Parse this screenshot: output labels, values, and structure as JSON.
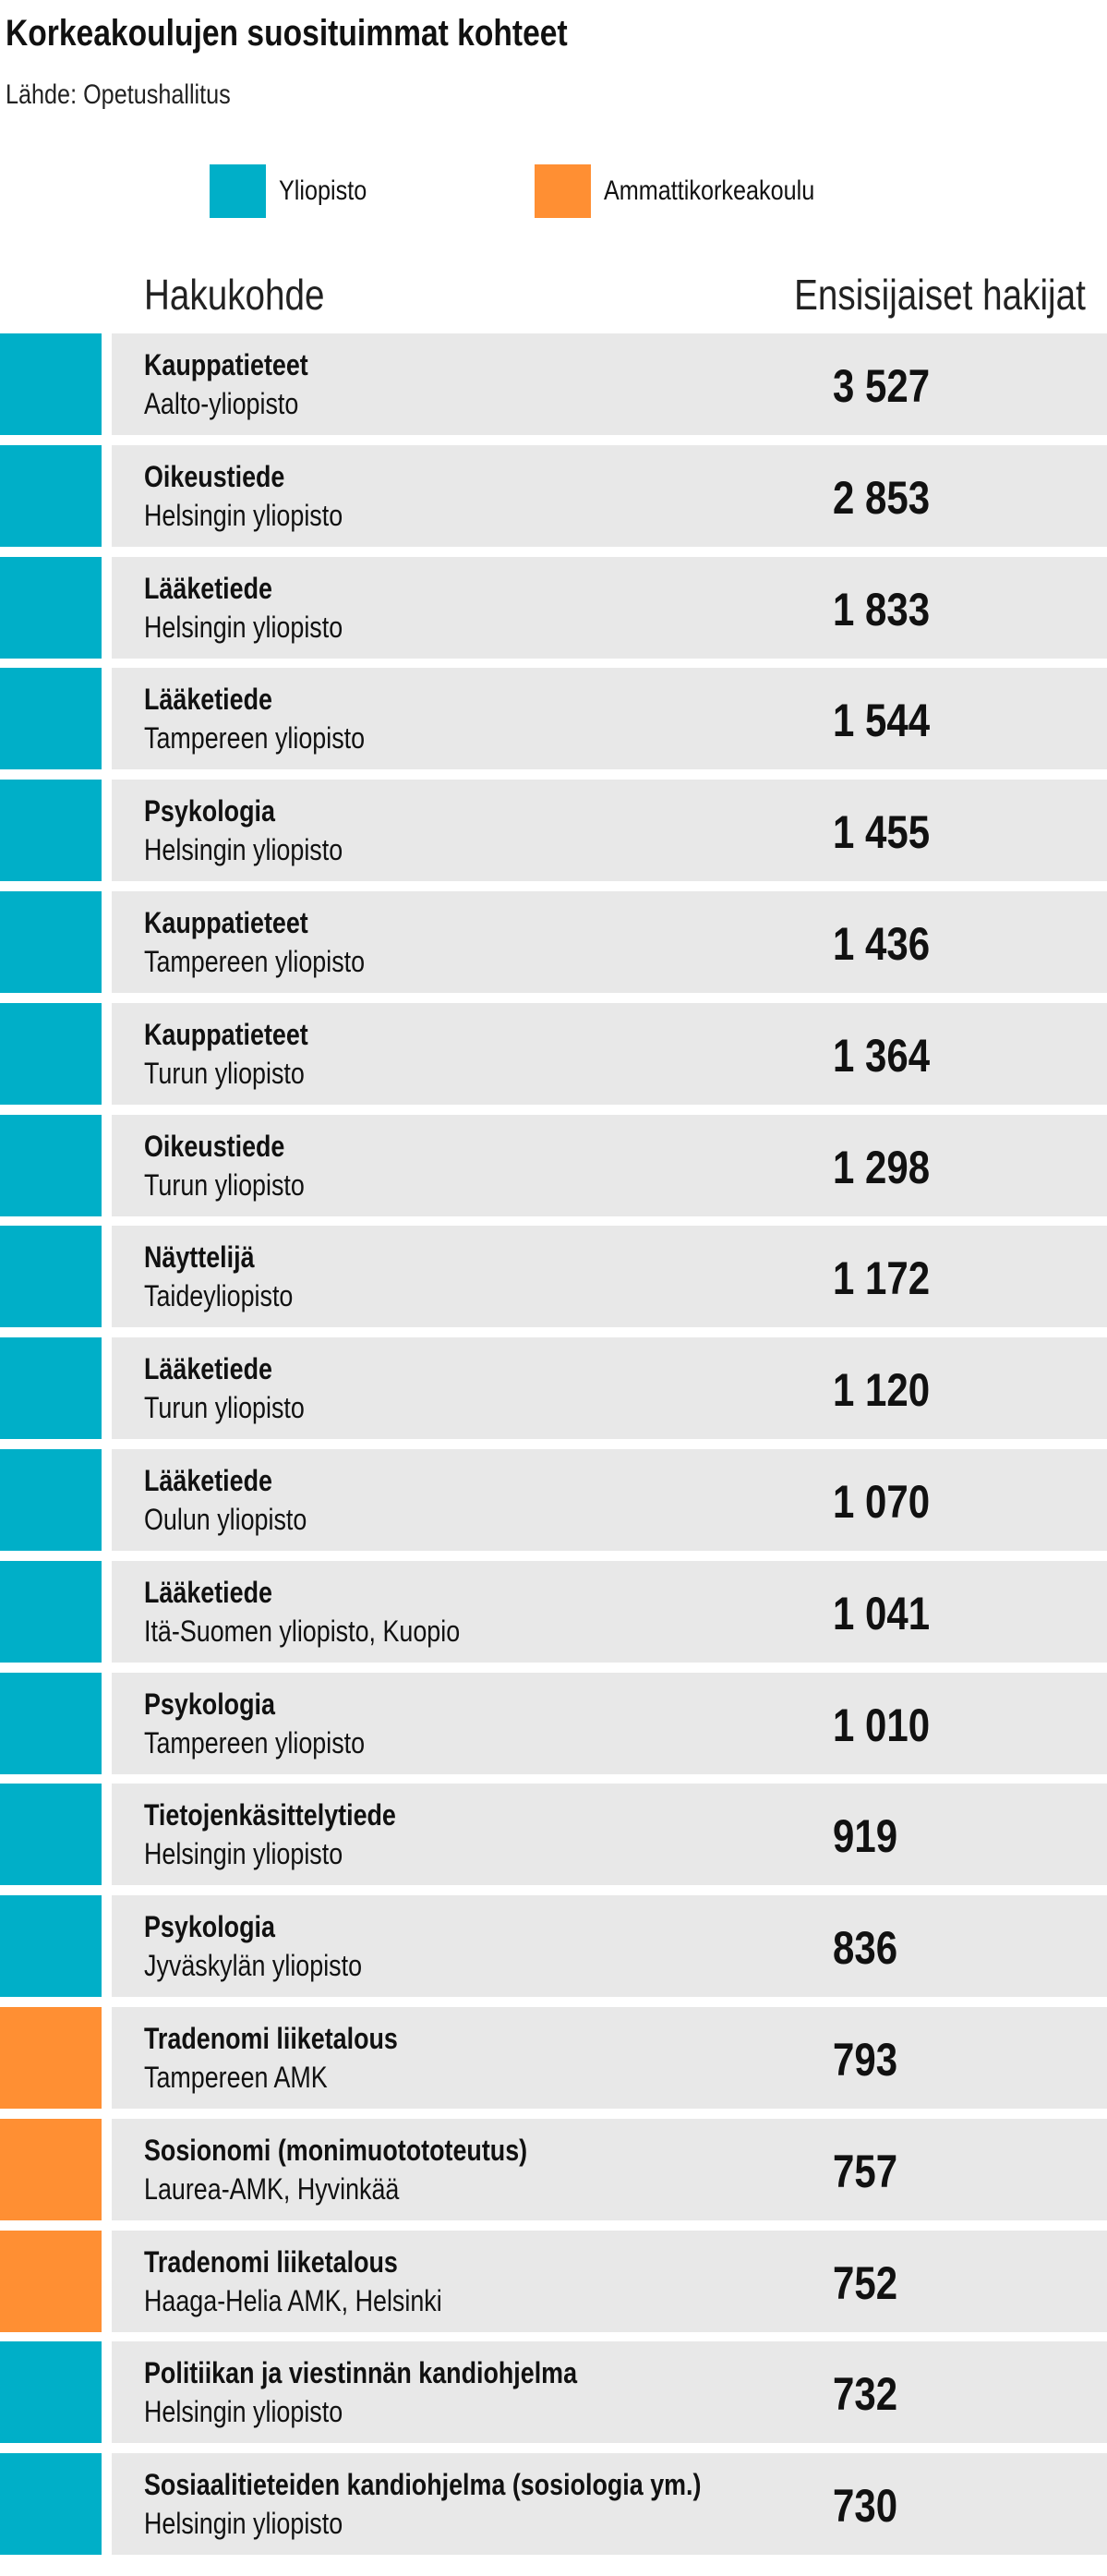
{
  "header": {
    "title": "Korkeakoulujen suosituimmat kohteet",
    "source": "Lähde: Opetushallitus"
  },
  "legend": [
    {
      "label": "Yliopisto",
      "color": "#00afc8"
    },
    {
      "label": "Ammattikorkeakoulu",
      "color": "#ff8f33"
    }
  ],
  "table": {
    "columns": [
      "Hakukohde",
      "Ensisijaiset hakijat"
    ],
    "rows": [
      {
        "name": "Kauppatieteet",
        "school": "Aalto-yliopisto",
        "value": "3 527",
        "color": "#00afc8"
      },
      {
        "name": "Oikeustiede",
        "school": "Helsingin yliopisto",
        "value": "2 853",
        "color": "#00afc8"
      },
      {
        "name": "Lääketiede",
        "school": "Helsingin yliopisto",
        "value": "1 833",
        "color": "#00afc8"
      },
      {
        "name": "Lääketiede",
        "school": "Tampereen yliopisto",
        "value": "1 544",
        "color": "#00afc8"
      },
      {
        "name": "Psykologia",
        "school": "Helsingin yliopisto",
        "value": "1 455",
        "color": "#00afc8"
      },
      {
        "name": "Kauppatieteet",
        "school": "Tampereen yliopisto",
        "value": "1 436",
        "color": "#00afc8"
      },
      {
        "name": "Kauppatieteet",
        "school": "Turun yliopisto",
        "value": "1 364",
        "color": "#00afc8"
      },
      {
        "name": "Oikeustiede",
        "school": "Turun yliopisto",
        "value": "1 298",
        "color": "#00afc8"
      },
      {
        "name": "Näyttelijä",
        "school": "Taideyliopisto",
        "value": "1 172",
        "color": "#00afc8"
      },
      {
        "name": "Lääketiede",
        "school": "Turun yliopisto",
        "value": "1 120",
        "color": "#00afc8"
      },
      {
        "name": "Lääketiede",
        "school": "Oulun yliopisto",
        "value": "1 070",
        "color": "#00afc8"
      },
      {
        "name": "Lääketiede",
        "school": "Itä-Suomen yliopisto, Kuopio",
        "value": "1 041",
        "color": "#00afc8"
      },
      {
        "name": "Psykologia",
        "school": "Tampereen yliopisto",
        "value": "1 010",
        "color": "#00afc8"
      },
      {
        "name": "Tietojenkäsittelytiede",
        "school": "Helsingin yliopisto",
        "value": "919",
        "color": "#00afc8"
      },
      {
        "name": "Psykologia",
        "school": "Jyväskylän yliopisto",
        "value": "836",
        "color": "#00afc8"
      },
      {
        "name": "Tradenomi liiketalous",
        "school": "Tampereen AMK",
        "value": "793",
        "color": "#ff8f33"
      },
      {
        "name": "Sosionomi (monimuotototeutus)",
        "school": "Laurea-AMK, Hyvinkää",
        "value": "757",
        "color": "#ff8f33"
      },
      {
        "name": "Tradenomi liiketalous",
        "school": "Haaga-Helia AMK, Helsinki",
        "value": "752",
        "color": "#ff8f33"
      },
      {
        "name": "Politiikan ja viestinnän kandiohjelma",
        "school": "Helsingin yliopisto",
        "value": "732",
        "color": "#00afc8"
      },
      {
        "name": "Sosiaalitieteiden kandiohjelma (sosiologia ym.)",
        "school": "Helsingin yliopisto",
        "value": "730",
        "color": "#00afc8"
      }
    ]
  }
}
